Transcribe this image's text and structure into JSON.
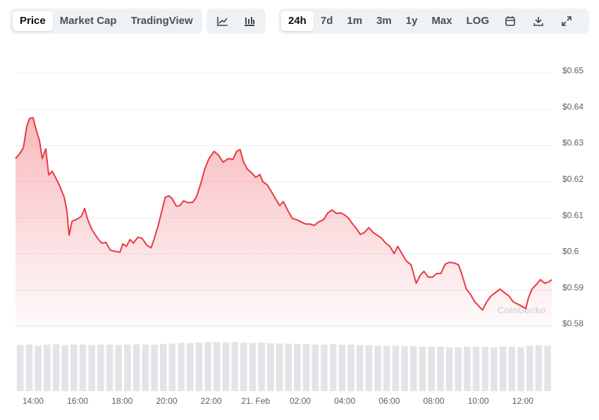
{
  "toolbar": {
    "view_tabs": [
      "Price",
      "Market Cap",
      "TradingView"
    ],
    "range_tabs": [
      "24h",
      "7d",
      "1m",
      "3m",
      "1y",
      "Max",
      "LOG"
    ]
  },
  "chart_data": {
    "type": "line",
    "watermark": "CoinGecko",
    "x": [
      13.21,
      13.4,
      13.56,
      13.71,
      13.84,
      14.0,
      14.1,
      14.29,
      14.41,
      14.57,
      14.7,
      14.86,
      14.98,
      15.17,
      15.4,
      15.52,
      15.62,
      15.75,
      15.94,
      16.16,
      16.32,
      16.44,
      16.63,
      16.89,
      17.08,
      17.27,
      17.46,
      17.68,
      17.9,
      18.03,
      18.19,
      18.35,
      18.51,
      18.7,
      18.89,
      19.11,
      19.3,
      19.43,
      19.62,
      19.78,
      19.94,
      20.1,
      20.25,
      20.44,
      20.6,
      20.76,
      20.95,
      21.17,
      21.33,
      21.52,
      21.71,
      21.9,
      22.13,
      22.32,
      22.54,
      22.76,
      22.98,
      23.14,
      23.3,
      23.46,
      23.62,
      23.81,
      24.0,
      24.19,
      24.32,
      24.51,
      24.7,
      24.89,
      25.08,
      25.24,
      25.43,
      25.65,
      25.84,
      26.03,
      26.25,
      26.44,
      26.63,
      26.83,
      27.05,
      27.24,
      27.43,
      27.62,
      27.81,
      28.0,
      28.19,
      28.35,
      28.54,
      28.7,
      28.89,
      29.08,
      29.27,
      29.46,
      29.65,
      29.84,
      30.03,
      30.22,
      30.38,
      30.57,
      30.76,
      30.98,
      31.21,
      31.4,
      31.56,
      31.75,
      31.94,
      32.13,
      32.32,
      32.51,
      32.7,
      32.92,
      33.11,
      33.27,
      33.46,
      33.65,
      33.84,
      34.03,
      34.19,
      34.38,
      34.57,
      34.76,
      34.98,
      35.17,
      35.37,
      35.56,
      35.78,
      35.97,
      36.13,
      36.25,
      36.41,
      36.6,
      36.79,
      36.98,
      37.17,
      37.3
    ],
    "series": [
      {
        "color": "#ea3943",
        "values": [
          0.6264,
          0.6278,
          0.6293,
          0.6352,
          0.6375,
          0.6377,
          0.6352,
          0.6313,
          0.6264,
          0.6291,
          0.6219,
          0.6229,
          0.6215,
          0.6192,
          0.6157,
          0.6118,
          0.6052,
          0.6091,
          0.6095,
          0.6104,
          0.6126,
          0.6098,
          0.6069,
          0.6044,
          0.603,
          0.6032,
          0.6011,
          0.6007,
          0.6005,
          0.6028,
          0.6021,
          0.604,
          0.603,
          0.6046,
          0.6044,
          0.6024,
          0.6017,
          0.604,
          0.6079,
          0.6118,
          0.6157,
          0.6161,
          0.6153,
          0.6132,
          0.6134,
          0.6147,
          0.6142,
          0.6143,
          0.6157,
          0.6192,
          0.6235,
          0.6264,
          0.6284,
          0.6274,
          0.6254,
          0.6264,
          0.6262,
          0.6284,
          0.6289,
          0.6254,
          0.6235,
          0.6225,
          0.6212,
          0.622,
          0.62,
          0.6192,
          0.6173,
          0.6153,
          0.6134,
          0.6145,
          0.6122,
          0.6098,
          0.6095,
          0.6089,
          0.6083,
          0.6083,
          0.6079,
          0.6089,
          0.6095,
          0.6114,
          0.6122,
          0.6112,
          0.6114,
          0.6108,
          0.6098,
          0.6083,
          0.6069,
          0.6054,
          0.606,
          0.6073,
          0.606,
          0.6052,
          0.6044,
          0.603,
          0.6021,
          0.6001,
          0.6021,
          0.6001,
          0.5981,
          0.597,
          0.5919,
          0.5942,
          0.5952,
          0.5936,
          0.5936,
          0.5946,
          0.5946,
          0.5972,
          0.5977,
          0.5975,
          0.597,
          0.5942,
          0.5903,
          0.5888,
          0.5868,
          0.5855,
          0.5845,
          0.5868,
          0.5884,
          0.5893,
          0.5903,
          0.5893,
          0.5884,
          0.5868,
          0.5861,
          0.5855,
          0.5849,
          0.5878,
          0.5903,
          0.5915,
          0.5929,
          0.5919,
          0.5923,
          0.5929
        ]
      }
    ],
    "xlim": [
      13.21,
      37.3
    ],
    "xticks": [
      {
        "value": 14,
        "label": "14:00"
      },
      {
        "value": 16,
        "label": "16:00"
      },
      {
        "value": 18,
        "label": "18:00"
      },
      {
        "value": 20,
        "label": "20:00"
      },
      {
        "value": 22,
        "label": "22:00"
      },
      {
        "value": 24,
        "label": "21. Feb"
      },
      {
        "value": 26,
        "label": "02:00"
      },
      {
        "value": 28,
        "label": "04:00"
      },
      {
        "value": 30,
        "label": "06:00"
      },
      {
        "value": 32,
        "label": "08:00"
      },
      {
        "value": 34,
        "label": "10:00"
      },
      {
        "value": 36,
        "label": "12:00"
      }
    ],
    "ylim": [
      0.58,
      0.65
    ],
    "yticks": [
      {
        "value": 0.58,
        "label": "$0.58"
      },
      {
        "value": 0.59,
        "label": "$0.59"
      },
      {
        "value": 0.6,
        "label": "$0.6"
      },
      {
        "value": 0.61,
        "label": "$0.61"
      },
      {
        "value": 0.62,
        "label": "$0.62"
      },
      {
        "value": 0.63,
        "label": "$0.63"
      },
      {
        "value": 0.64,
        "label": "$0.64"
      },
      {
        "value": 0.65,
        "label": "$0.65"
      }
    ],
    "grid": true,
    "volume": {
      "color": "#e4e4e8",
      "ylim": [
        0,
        100
      ],
      "values": [
        87,
        88,
        86,
        88,
        89,
        87,
        88,
        88,
        87,
        88,
        88,
        87,
        88,
        89,
        88,
        88,
        89,
        90,
        91,
        91,
        92,
        93,
        93,
        92,
        93,
        92,
        91,
        92,
        91,
        90,
        90,
        89,
        89,
        88,
        88,
        89,
        88,
        88,
        87,
        87,
        86,
        86,
        86,
        85,
        85,
        84,
        84,
        84,
        83,
        83,
        84,
        84,
        84,
        83,
        84,
        84,
        83,
        86,
        87,
        86
      ]
    }
  }
}
